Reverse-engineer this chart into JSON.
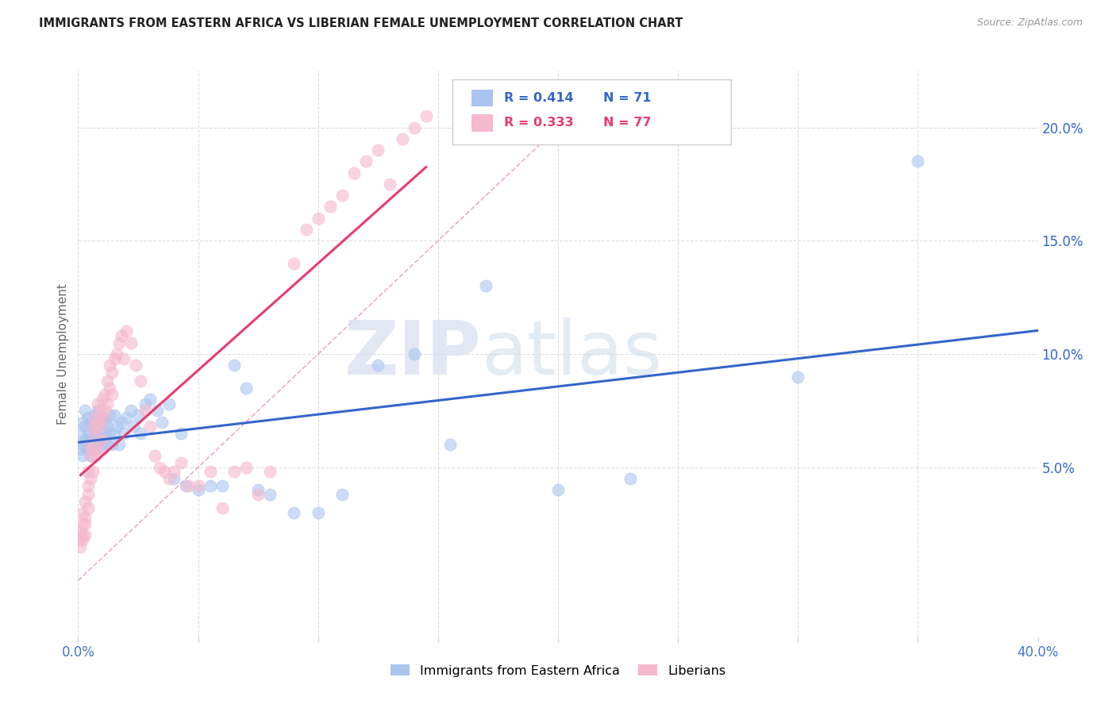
{
  "title": "IMMIGRANTS FROM EASTERN AFRICA VS LIBERIAN FEMALE UNEMPLOYMENT CORRELATION CHART",
  "source": "Source: ZipAtlas.com",
  "ylabel": "Female Unemployment",
  "right_yticks": [
    "5.0%",
    "10.0%",
    "15.0%",
    "20.0%"
  ],
  "right_ytick_vals": [
    0.05,
    0.1,
    0.15,
    0.2
  ],
  "xlim": [
    0.0,
    0.4
  ],
  "ylim": [
    -0.025,
    0.225
  ],
  "blue_color": "#aac4f0",
  "pink_color": "#f5b8cc",
  "blue_line_color": "#3366cc",
  "pink_line_color": "#e83c6e",
  "diag_line_color": "#d0a0b0",
  "legend_blue_r": "0.414",
  "legend_blue_n": "71",
  "legend_pink_r": "0.333",
  "legend_pink_n": "77",
  "watermark_zip": "ZIP",
  "watermark_atlas": "atlas",
  "legend1_label": "Immigrants from Eastern Africa",
  "legend2_label": "Liberians",
  "blue_scatter_x": [
    0.001,
    0.001,
    0.002,
    0.002,
    0.002,
    0.003,
    0.003,
    0.003,
    0.004,
    0.004,
    0.004,
    0.005,
    0.005,
    0.005,
    0.006,
    0.006,
    0.007,
    0.007,
    0.007,
    0.008,
    0.008,
    0.008,
    0.009,
    0.009,
    0.01,
    0.01,
    0.01,
    0.011,
    0.011,
    0.012,
    0.012,
    0.013,
    0.013,
    0.014,
    0.015,
    0.015,
    0.016,
    0.017,
    0.018,
    0.019,
    0.02,
    0.022,
    0.023,
    0.025,
    0.026,
    0.028,
    0.03,
    0.033,
    0.035,
    0.038,
    0.04,
    0.043,
    0.045,
    0.05,
    0.055,
    0.06,
    0.065,
    0.07,
    0.075,
    0.08,
    0.09,
    0.1,
    0.11,
    0.125,
    0.14,
    0.155,
    0.17,
    0.2,
    0.23,
    0.3,
    0.35
  ],
  "blue_scatter_y": [
    0.058,
    0.065,
    0.06,
    0.07,
    0.055,
    0.062,
    0.068,
    0.075,
    0.058,
    0.065,
    0.072,
    0.055,
    0.063,
    0.07,
    0.06,
    0.068,
    0.058,
    0.065,
    0.073,
    0.06,
    0.068,
    0.075,
    0.063,
    0.07,
    0.058,
    0.065,
    0.072,
    0.063,
    0.07,
    0.06,
    0.068,
    0.065,
    0.073,
    0.06,
    0.065,
    0.073,
    0.068,
    0.06,
    0.07,
    0.065,
    0.072,
    0.075,
    0.068,
    0.073,
    0.065,
    0.078,
    0.08,
    0.075,
    0.07,
    0.078,
    0.045,
    0.065,
    0.042,
    0.04,
    0.042,
    0.042,
    0.095,
    0.085,
    0.04,
    0.038,
    0.03,
    0.03,
    0.038,
    0.095,
    0.1,
    0.06,
    0.13,
    0.04,
    0.045,
    0.09,
    0.185
  ],
  "pink_scatter_x": [
    0.001,
    0.001,
    0.001,
    0.002,
    0.002,
    0.002,
    0.002,
    0.003,
    0.003,
    0.003,
    0.003,
    0.004,
    0.004,
    0.004,
    0.004,
    0.005,
    0.005,
    0.005,
    0.006,
    0.006,
    0.006,
    0.007,
    0.007,
    0.007,
    0.008,
    0.008,
    0.008,
    0.009,
    0.009,
    0.01,
    0.01,
    0.01,
    0.011,
    0.011,
    0.012,
    0.012,
    0.013,
    0.013,
    0.014,
    0.014,
    0.015,
    0.016,
    0.017,
    0.018,
    0.019,
    0.02,
    0.022,
    0.024,
    0.026,
    0.028,
    0.03,
    0.032,
    0.034,
    0.036,
    0.038,
    0.04,
    0.043,
    0.046,
    0.05,
    0.055,
    0.06,
    0.065,
    0.07,
    0.075,
    0.08,
    0.09,
    0.095,
    0.1,
    0.105,
    0.11,
    0.115,
    0.12,
    0.125,
    0.13,
    0.135,
    0.14,
    0.145
  ],
  "pink_scatter_y": [
    0.022,
    0.018,
    0.015,
    0.025,
    0.02,
    0.03,
    0.018,
    0.028,
    0.035,
    0.025,
    0.02,
    0.032,
    0.042,
    0.048,
    0.038,
    0.055,
    0.045,
    0.06,
    0.058,
    0.068,
    0.048,
    0.065,
    0.072,
    0.055,
    0.07,
    0.078,
    0.058,
    0.068,
    0.075,
    0.062,
    0.072,
    0.08,
    0.075,
    0.082,
    0.078,
    0.088,
    0.085,
    0.095,
    0.082,
    0.092,
    0.098,
    0.1,
    0.105,
    0.108,
    0.098,
    0.11,
    0.105,
    0.095,
    0.088,
    0.075,
    0.068,
    0.055,
    0.05,
    0.048,
    0.045,
    0.048,
    0.052,
    0.042,
    0.042,
    0.048,
    0.032,
    0.048,
    0.05,
    0.038,
    0.048,
    0.14,
    0.155,
    0.16,
    0.165,
    0.17,
    0.18,
    0.185,
    0.19,
    0.175,
    0.195,
    0.2,
    0.205
  ]
}
